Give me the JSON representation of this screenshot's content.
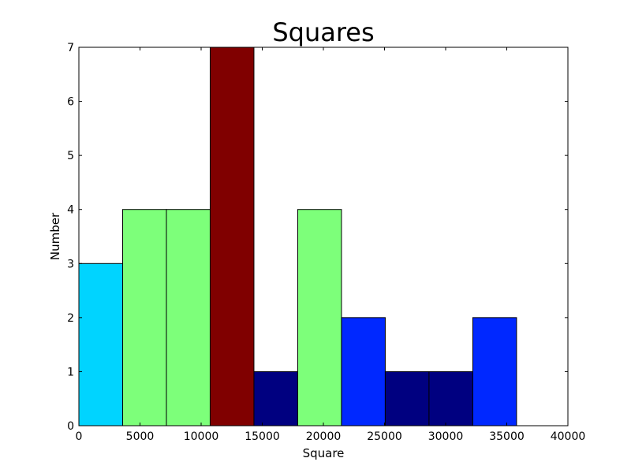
{
  "chart_data": {
    "type": "bar",
    "title": "Squares",
    "xlabel": "Square",
    "ylabel": "Number",
    "xlim": [
      0,
      40000
    ],
    "ylim": [
      0,
      7
    ],
    "xticks": [
      0,
      5000,
      10000,
      15000,
      20000,
      25000,
      30000,
      35000,
      40000
    ],
    "yticks": [
      0,
      1,
      2,
      3,
      4,
      5,
      6,
      7
    ],
    "grid": false,
    "bins": [
      {
        "x0": 0,
        "x1": 3580,
        "value": 3,
        "color": "#00d4ff"
      },
      {
        "x0": 3580,
        "x1": 7160,
        "value": 4,
        "color": "#7dff7a"
      },
      {
        "x0": 7160,
        "x1": 10740,
        "value": 4,
        "color": "#7dff7a"
      },
      {
        "x0": 10740,
        "x1": 14320,
        "value": 7,
        "color": "#800000"
      },
      {
        "x0": 14320,
        "x1": 17900,
        "value": 1,
        "color": "#000080"
      },
      {
        "x0": 17900,
        "x1": 21480,
        "value": 4,
        "color": "#7dff7a"
      },
      {
        "x0": 21480,
        "x1": 25060,
        "value": 2,
        "color": "#0028ff"
      },
      {
        "x0": 25060,
        "x1": 28640,
        "value": 1,
        "color": "#000080"
      },
      {
        "x0": 28640,
        "x1": 32220,
        "value": 1,
        "color": "#000080"
      },
      {
        "x0": 32220,
        "x1": 35800,
        "value": 2,
        "color": "#0028ff"
      }
    ]
  }
}
